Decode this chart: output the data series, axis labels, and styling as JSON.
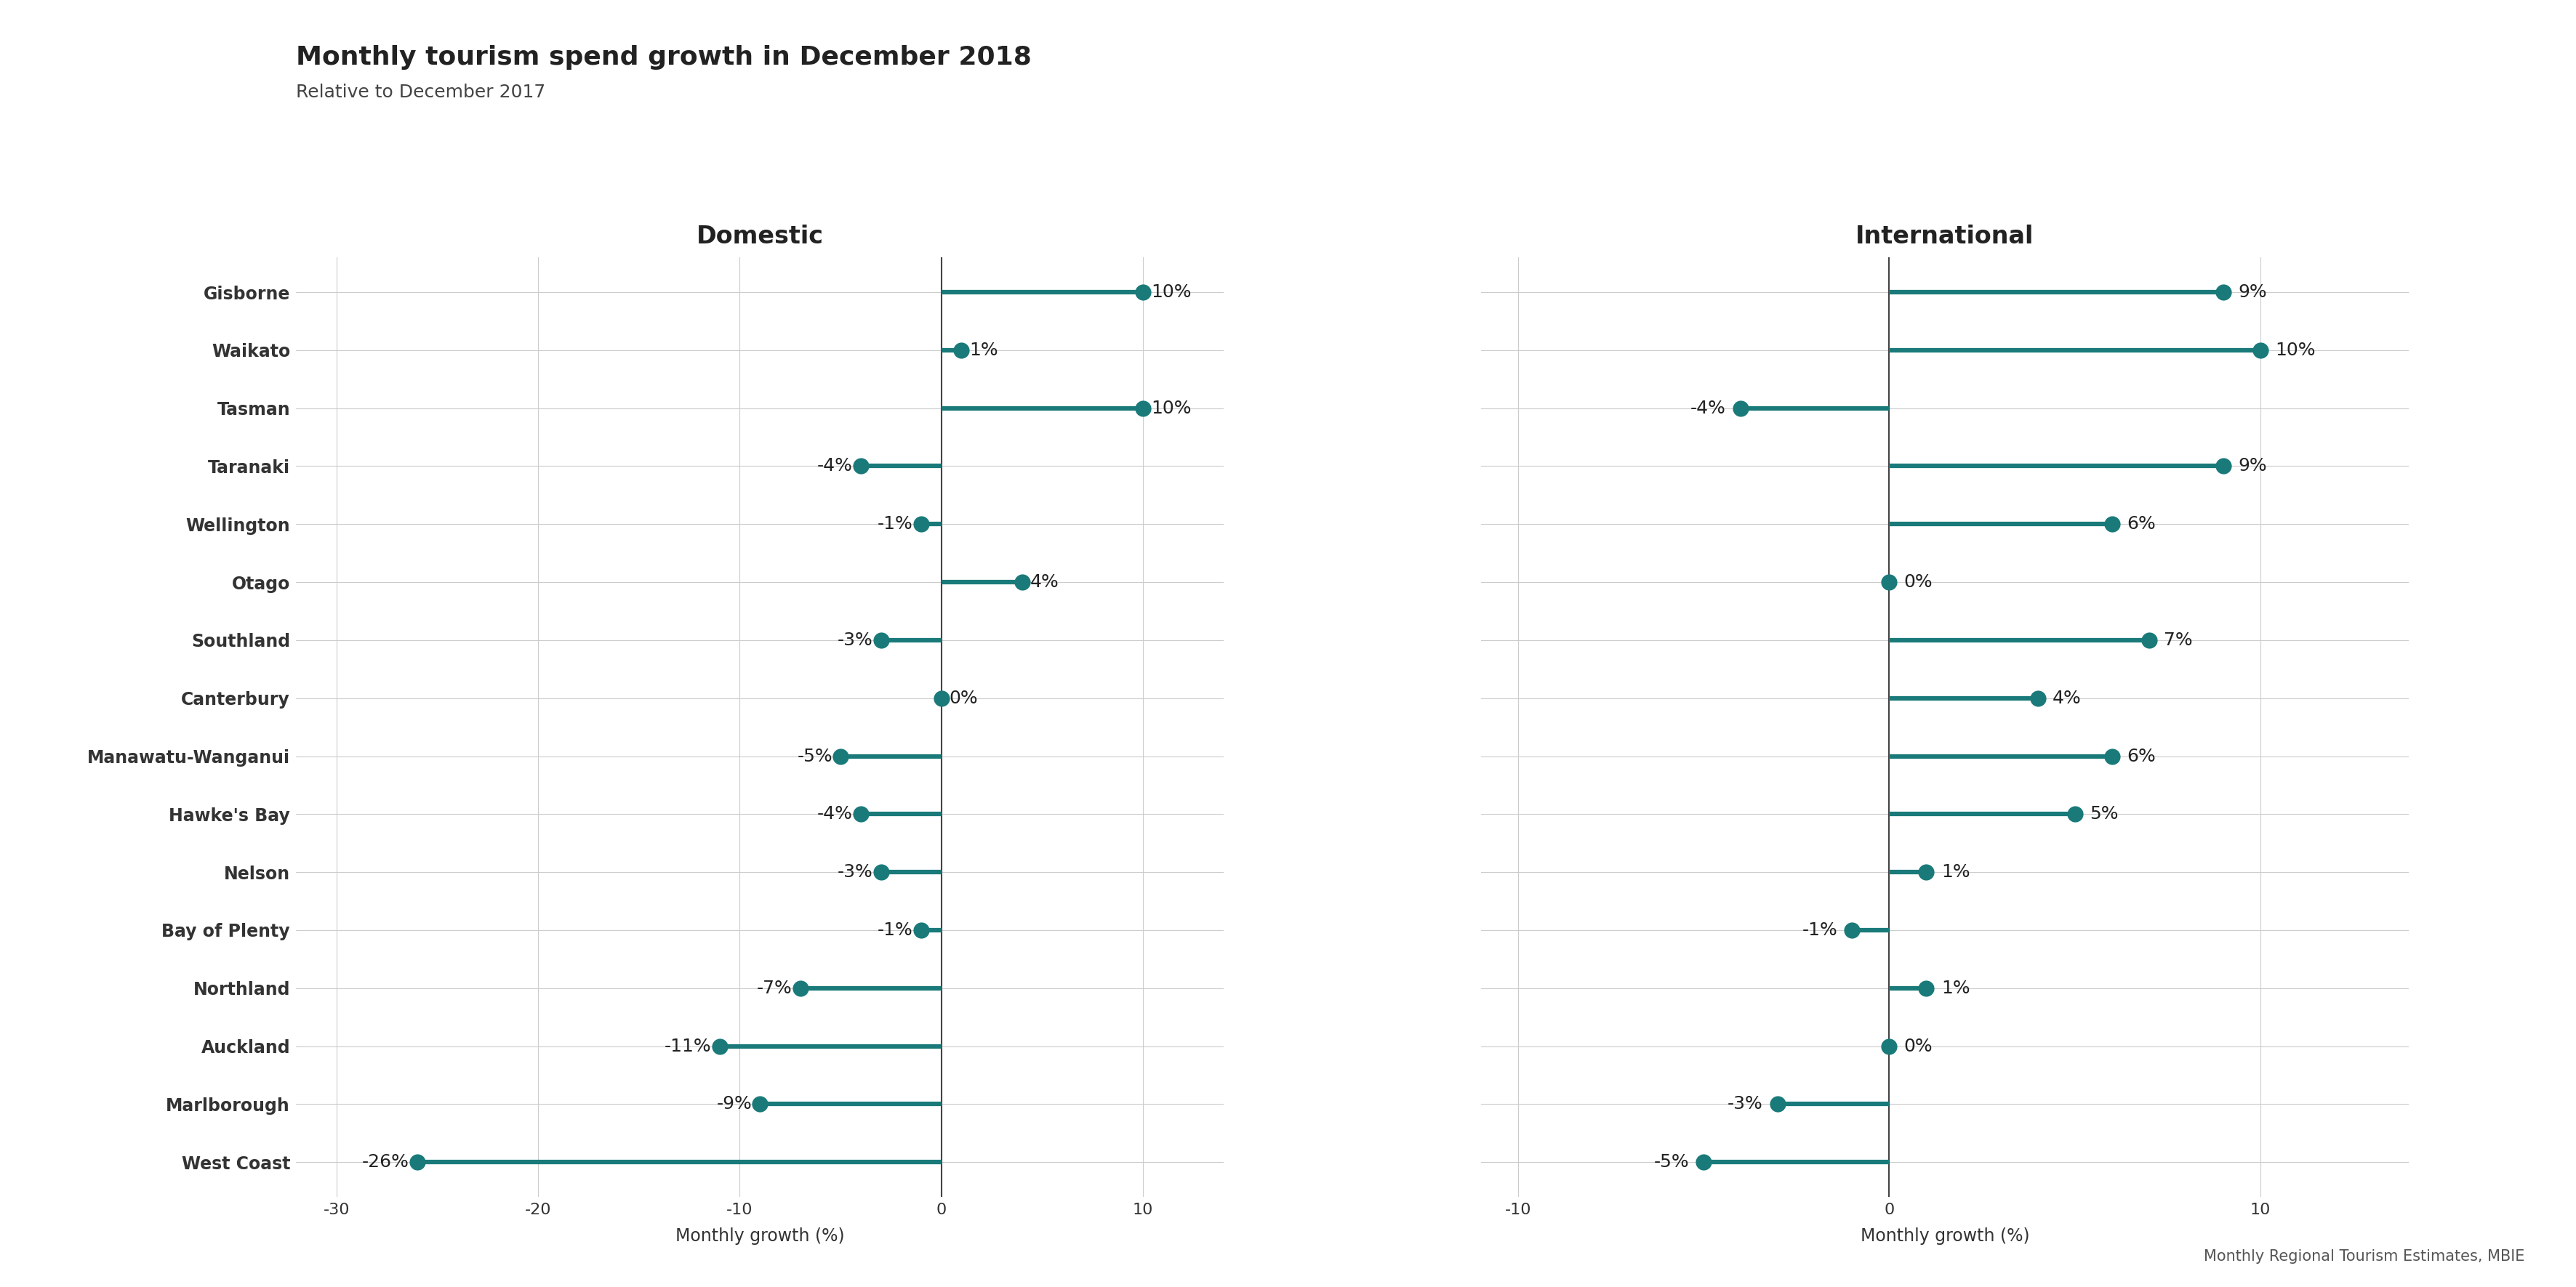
{
  "title": "Monthly tourism spend growth in December 2018",
  "subtitle": "Relative to December 2017",
  "regions": [
    "Gisborne",
    "Waikato",
    "Tasman",
    "Taranaki",
    "Wellington",
    "Otago",
    "Southland",
    "Canterbury",
    "Manawatu-Wanganui",
    "Hawke's Bay",
    "Nelson",
    "Bay of Plenty",
    "Northland",
    "Auckland",
    "Marlborough",
    "West Coast"
  ],
  "domestic": [
    10,
    1,
    10,
    -4,
    -1,
    4,
    -3,
    0,
    -5,
    -4,
    -3,
    -1,
    -7,
    -11,
    -9,
    -26
  ],
  "international": [
    9,
    10,
    -4,
    9,
    6,
    0,
    7,
    4,
    6,
    5,
    1,
    -1,
    1,
    0,
    -3,
    -5
  ],
  "bar_color": "#1a7a7a",
  "domestic_xlim": [
    -32,
    14
  ],
  "international_xlim": [
    -11,
    14
  ],
  "domestic_xticks": [
    -30,
    -20,
    -10,
    0,
    10
  ],
  "international_xticks": [
    -10,
    0,
    10
  ],
  "xlabel": "Monthly growth (%)",
  "domestic_title": "Domestic",
  "international_title": "International",
  "source_text": "Monthly Regional Tourism Estimates, MBIE",
  "background_color": "#ffffff",
  "grid_color": "#cccccc",
  "title_fontsize": 26,
  "subtitle_fontsize": 18,
  "panel_title_fontsize": 24,
  "label_fontsize": 17,
  "tick_fontsize": 16,
  "source_fontsize": 15,
  "value_fontsize": 18,
  "axis_label_fontsize": 17
}
